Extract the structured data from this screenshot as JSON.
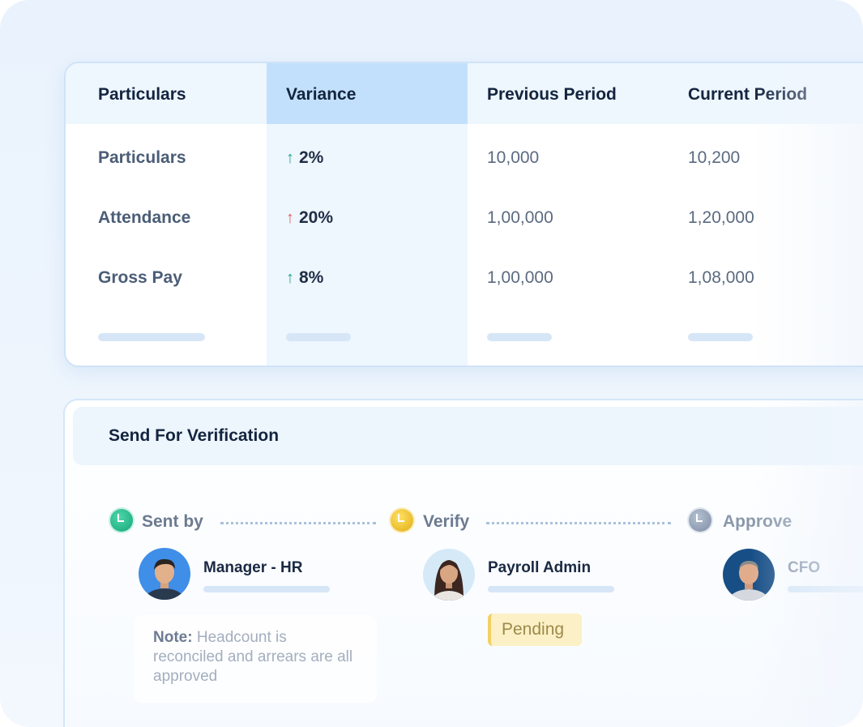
{
  "table": {
    "headers": [
      "Particulars",
      "Variance",
      "Previous Period",
      "Current Period"
    ],
    "rows": [
      {
        "label": "Particulars",
        "variance": "2%",
        "trend": "up",
        "trend_color": "#1fa785",
        "previous": "10,000",
        "current": "10,200"
      },
      {
        "label": "Attendance",
        "variance": "20%",
        "trend": "up",
        "trend_color": "#e45d5d",
        "previous": "1,00,000",
        "current": "1,20,000"
      },
      {
        "label": "Gross Pay",
        "variance": "8%",
        "trend": "up",
        "trend_color": "#1fa785",
        "previous": "1,00,000",
        "current": "1,08,000"
      }
    ],
    "arrow_glyph": "↑"
  },
  "verification": {
    "title": "Send For Verification",
    "steps": [
      {
        "label": "Sent by",
        "status_icon": "clock-icon",
        "color": "#14a67b",
        "person": "Manager - HR"
      },
      {
        "label": "Verify",
        "status_icon": "clock-icon",
        "color": "#e0ad12",
        "person": "Payroll Admin",
        "badge": "Pending"
      },
      {
        "label": "Approve",
        "status_icon": "clock-icon",
        "color": "#7d8ba2",
        "person": "CFO"
      }
    ],
    "note": {
      "label": "Note:",
      "text": "Headcount is reconciled and arrears are all approved"
    }
  }
}
